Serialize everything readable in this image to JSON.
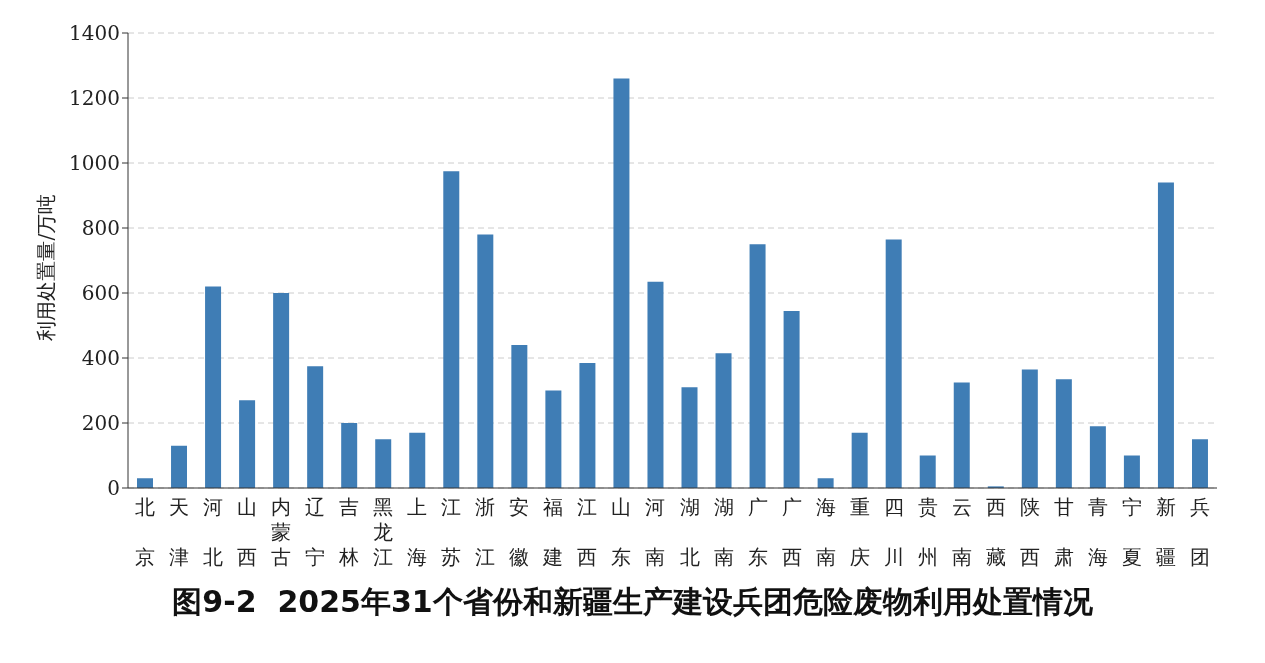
{
  "chart_data": {
    "type": "bar",
    "title": "图9-2  2025年31个省份和新疆生产建设兵团危险废物利用处置情况",
    "ylabel": "利用处置量/万吨",
    "categories": [
      "北京",
      "天津",
      "河北",
      "山西",
      "内蒙古",
      "辽宁",
      "吉林",
      "黑龙江",
      "上海",
      "江苏",
      "浙江",
      "安徽",
      "福建",
      "江西",
      "山东",
      "河南",
      "湖北",
      "湖南",
      "广东",
      "广西",
      "海南",
      "重庆",
      "四川",
      "贵州",
      "云南",
      "西藏",
      "陕西",
      "甘肃",
      "青海",
      "宁夏",
      "新疆",
      "兵团"
    ],
    "values": [
      30,
      130,
      620,
      270,
      600,
      375,
      200,
      150,
      170,
      975,
      780,
      440,
      300,
      385,
      1260,
      635,
      310,
      415,
      750,
      545,
      30,
      170,
      765,
      100,
      325,
      5,
      365,
      335,
      190,
      100,
      940,
      150
    ],
    "color": "#3f7db5",
    "ylim": [
      0,
      1400
    ],
    "yticks": [
      0,
      200,
      400,
      600,
      800,
      1000,
      1200,
      1400
    ],
    "grid": "y"
  }
}
